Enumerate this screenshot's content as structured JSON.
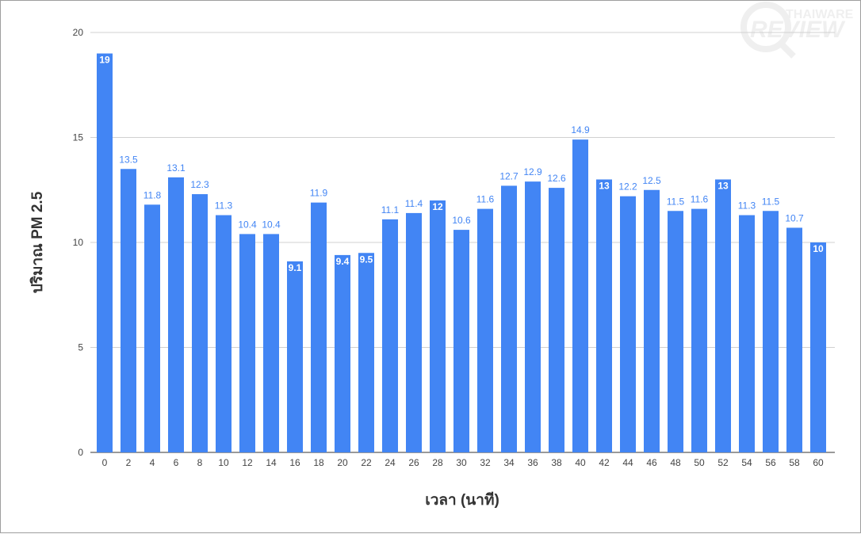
{
  "chart_data": {
    "type": "bar",
    "xlabel": "เวลา (นาที)",
    "ylabel": "ปริมาณ PM 2.5",
    "ylim": [
      0,
      20
    ],
    "yticks": [
      0,
      5,
      10,
      15,
      20
    ],
    "grid": true,
    "legend": "none",
    "bar_color": "#4285f4",
    "label_color": "#4285f4",
    "categories": [
      "0",
      "2",
      "4",
      "6",
      "8",
      "10",
      "12",
      "14",
      "16",
      "18",
      "20",
      "22",
      "24",
      "26",
      "28",
      "30",
      "32",
      "34",
      "36",
      "38",
      "40",
      "42",
      "44",
      "46",
      "48",
      "50",
      "52",
      "54",
      "56",
      "58",
      "60"
    ],
    "values": [
      19,
      13.5,
      11.8,
      13.1,
      12.3,
      11.3,
      10.4,
      10.4,
      9.1,
      11.9,
      9.4,
      9.5,
      11.1,
      11.4,
      12,
      10.6,
      11.6,
      12.7,
      12.9,
      12.6,
      14.9,
      13,
      12.2,
      12.5,
      11.5,
      11.6,
      13,
      11.3,
      11.5,
      10.7,
      10
    ]
  },
  "watermark": {
    "line1": "THAIWARE",
    "line2": "REVIEW"
  }
}
